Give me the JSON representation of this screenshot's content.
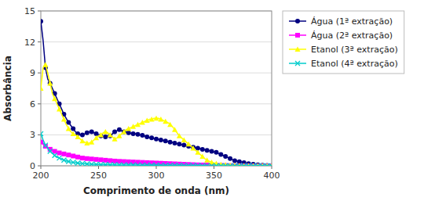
{
  "chart_data": {
    "type": "line",
    "xlabel": "Comprimento de onda (nm)",
    "ylabel": "Absorbância",
    "xlim": [
      200,
      400
    ],
    "ylim": [
      0,
      15
    ],
    "xticks": [
      200,
      250,
      300,
      350,
      400
    ],
    "yticks": [
      0,
      3,
      6,
      9,
      12,
      15
    ],
    "grid": "y",
    "legend": "right",
    "x": [
      200,
      202,
      204,
      206,
      208,
      210,
      212,
      214,
      216,
      218,
      220,
      222,
      224,
      226,
      228,
      230,
      232,
      234,
      236,
      238,
      240,
      242,
      244,
      246,
      248,
      250,
      252,
      254,
      256,
      258,
      260,
      262,
      264,
      266,
      268,
      270,
      272,
      274,
      276,
      278,
      280,
      282,
      284,
      286,
      288,
      290,
      292,
      294,
      296,
      298,
      300,
      302,
      304,
      306,
      308,
      310,
      312,
      314,
      316,
      318,
      320,
      322,
      324,
      326,
      328,
      330,
      332,
      334,
      336,
      338,
      340,
      342,
      344,
      346,
      348,
      350,
      352,
      354,
      356,
      358,
      360,
      362,
      364,
      366,
      368,
      370,
      372,
      374,
      376,
      378,
      380,
      382,
      384,
      386,
      388,
      390,
      392,
      394,
      396,
      398,
      400
    ],
    "series": [
      {
        "name": "Água (1ª extração)",
        "color": "#000080",
        "marker": "circle",
        "values": [
          14.0,
          12.1,
          9.5,
          8.4,
          8.0,
          7.5,
          7.0,
          6.5,
          6.0,
          5.5,
          5.0,
          4.6,
          4.2,
          3.9,
          3.6,
          3.3,
          3.1,
          3.0,
          3.0,
          3.1,
          3.2,
          3.3,
          3.3,
          3.2,
          3.1,
          3.0,
          2.9,
          2.8,
          2.8,
          2.85,
          2.9,
          3.1,
          3.3,
          3.4,
          3.5,
          3.4,
          3.3,
          3.2,
          3.2,
          3.15,
          3.1,
          3.1,
          3.05,
          3.0,
          2.95,
          2.9,
          2.8,
          2.75,
          2.7,
          2.65,
          2.6,
          2.55,
          2.5,
          2.45,
          2.4,
          2.35,
          2.3,
          2.25,
          2.2,
          2.15,
          2.1,
          2.05,
          2.0,
          1.95,
          1.9,
          1.85,
          1.8,
          1.75,
          1.7,
          1.65,
          1.6,
          1.55,
          1.5,
          1.45,
          1.4,
          1.35,
          1.3,
          1.2,
          1.1,
          1.0,
          0.9,
          0.8,
          0.7,
          0.6,
          0.5,
          0.45,
          0.4,
          0.35,
          0.3,
          0.25,
          0.2,
          0.18,
          0.15,
          0.12,
          0.1,
          0.08,
          0.06,
          0.05,
          0.04,
          0.03,
          0.02
        ]
      },
      {
        "name": "Água (2ª extração)",
        "color": "#ff00ff",
        "marker": "square",
        "values": [
          2.3,
          2.1,
          1.9,
          1.7,
          1.6,
          1.5,
          1.4,
          1.3,
          1.25,
          1.2,
          1.15,
          1.1,
          1.05,
          1.0,
          0.95,
          0.9,
          0.85,
          0.8,
          0.75,
          0.72,
          0.7,
          0.68,
          0.66,
          0.64,
          0.62,
          0.6,
          0.58,
          0.56,
          0.54,
          0.52,
          0.5,
          0.48,
          0.46,
          0.44,
          0.43,
          0.42,
          0.41,
          0.4,
          0.39,
          0.38,
          0.37,
          0.36,
          0.35,
          0.34,
          0.33,
          0.32,
          0.31,
          0.3,
          0.29,
          0.28,
          0.27,
          0.26,
          0.25,
          0.24,
          0.23,
          0.22,
          0.21,
          0.2,
          0.19,
          0.18,
          0.17,
          0.16,
          0.15,
          0.14,
          0.13,
          0.12,
          0.11,
          0.1,
          0.09,
          0.085,
          0.08,
          0.075,
          0.07,
          0.065,
          0.06,
          0.055,
          0.05,
          0.045,
          0.04,
          0.035,
          0.03,
          0.025,
          0.02,
          0.015,
          0.01,
          0.008,
          0.006,
          0.004,
          0.003,
          0.002,
          0.001,
          0.0,
          0.0,
          0.0,
          0.0,
          0.0,
          0.0,
          0.0,
          0.0,
          0.0,
          0.0
        ]
      },
      {
        "name": "Etanol (3ª extração)",
        "color": "#ffff00",
        "marker": "triangle",
        "values": [
          7.5,
          9.5,
          9.8,
          9.0,
          8.0,
          7.0,
          6.5,
          6.0,
          5.5,
          5.0,
          4.5,
          4.0,
          3.6,
          3.3,
          3.1,
          3.0,
          2.8,
          2.6,
          2.4,
          2.3,
          2.2,
          2.2,
          2.3,
          2.5,
          2.7,
          2.9,
          3.0,
          3.2,
          3.3,
          3.2,
          3.0,
          2.8,
          2.6,
          2.7,
          2.9,
          3.1,
          3.3,
          3.5,
          3.6,
          3.7,
          3.8,
          3.9,
          4.0,
          4.1,
          4.2,
          4.3,
          4.4,
          4.5,
          4.5,
          4.6,
          4.6,
          4.6,
          4.5,
          4.4,
          4.3,
          4.2,
          4.0,
          3.8,
          3.5,
          3.2,
          2.9,
          2.7,
          2.5,
          2.3,
          2.1,
          1.9,
          1.7,
          1.5,
          1.3,
          1.1,
          0.9,
          0.7,
          0.55,
          0.45,
          0.35,
          0.28,
          0.22,
          0.18,
          0.14,
          0.11,
          0.09,
          0.07,
          0.05,
          0.04,
          0.03,
          0.02,
          0.015,
          0.01,
          0.008,
          0.005,
          0.003,
          0.002,
          0.001,
          0.0,
          0.0,
          0.0,
          0.0,
          0.0,
          0.0,
          0.0,
          0.0
        ]
      },
      {
        "name": "Etanol (4ª extração)",
        "color": "#00cccc",
        "marker": "x",
        "values": [
          3.1,
          2.5,
          2.0,
          1.7,
          1.4,
          1.2,
          1.0,
          0.85,
          0.75,
          0.65,
          0.55,
          0.48,
          0.42,
          0.37,
          0.33,
          0.3,
          0.27,
          0.25,
          0.22,
          0.2,
          0.18,
          0.17,
          0.16,
          0.15,
          0.14,
          0.13,
          0.12,
          0.115,
          0.11,
          0.105,
          0.1,
          0.095,
          0.09,
          0.085,
          0.082,
          0.08,
          0.078,
          0.076,
          0.075,
          0.073,
          0.072,
          0.07,
          0.068,
          0.066,
          0.064,
          0.062,
          0.06,
          0.058,
          0.056,
          0.054,
          0.052,
          0.05,
          0.048,
          0.046,
          0.044,
          0.042,
          0.04,
          0.038,
          0.036,
          0.034,
          0.032,
          0.03,
          0.028,
          0.026,
          0.024,
          0.022,
          0.02,
          0.018,
          0.016,
          0.014,
          0.012,
          0.01,
          0.009,
          0.008,
          0.007,
          0.006,
          0.005,
          0.004,
          0.004,
          0.003,
          0.003,
          0.002,
          0.002,
          0.001,
          0.001,
          0.001,
          0.001,
          0.0,
          0.0,
          0.0,
          0.0,
          0.0,
          0.0,
          0.0,
          0.0,
          0.0,
          0.0,
          0.0,
          0.0,
          0.0,
          0.0
        ]
      }
    ]
  }
}
